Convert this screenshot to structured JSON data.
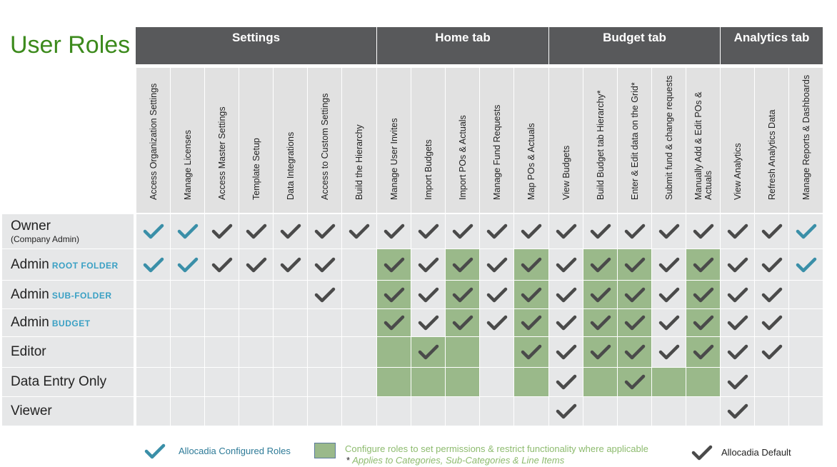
{
  "title": "User Roles",
  "groups": [
    {
      "label": "Settings"
    },
    {
      "label": "Home tab"
    },
    {
      "label": "Budget tab"
    },
    {
      "label": "Analytics tab"
    }
  ],
  "columns": [
    "Access Organization Settings",
    "Manage Licenses",
    "Access Master Settings",
    "Template Setup",
    "Data Integrations",
    "Access to Custom Settings",
    "Build the Hierarchy",
    "Manage User Invites",
    "Import Budgets",
    "Import POs & Actuals",
    "Manage Fund Requests",
    "Map POs & Actuals",
    "View Budgets",
    "Build Budget tab Hierarchy*",
    "Enter & Edit data on the Grid*",
    "Submit fund & change requests",
    "Manually Add & Edit POs & Actuals",
    "View Analytics",
    "Refresh Analytics Data",
    "Manage Reports & Dashboards"
  ],
  "rows": [
    {
      "name": "Owner",
      "tag": "",
      "note": "(Company Admin)",
      "cells": "BBDDDDDDDDDDDDDDDDDB",
      "green": "00000000000000000000"
    },
    {
      "name": "Admin",
      "tag": "ROOT FOLDER",
      "note": "",
      "cells": "BBDDDD0DDDDDDDDDDDDB",
      "green": "00000001010101101000"
    },
    {
      "name": "Admin",
      "tag": "SUB-FOLDER",
      "note": "",
      "cells": "00000D0DDDDDDDDDDDD0",
      "green": "00000001010101101000"
    },
    {
      "name": "Admin",
      "tag": "BUDGET",
      "note": "",
      "cells": "0000000DDDDDDDDDDDD0",
      "green": "00000001010101101000"
    },
    {
      "name": "Editor",
      "tag": "",
      "note": "",
      "cells": "00000000D00DDDDDDDD0",
      "green": "00000001110101101000"
    },
    {
      "name": "Data Entry Only",
      "tag": "",
      "note": "",
      "cells": "000000000000D0D00D00",
      "green": "00000001110101111000"
    },
    {
      "name": "Viewer",
      "tag": "",
      "note": "",
      "cells": "000000000000D0000D00",
      "green": "00000000000000000000"
    }
  ],
  "legend": {
    "configured": "Allocadia Configured Roles",
    "configure_text": "Configure roles to set permissions & restrict functionality where applicable",
    "asterisk_mark": "*",
    "asterisk_text": "Applies to Categories, Sub-Categories & Line Items",
    "default": "Allocadia Default"
  },
  "colors": {
    "title_green": "#3c8a1c",
    "header_dark": "#58595b",
    "header_light": "#e1e1e1",
    "cell_gray": "#e6e7e8",
    "permission_green": "#9ab98a",
    "check_blue": "#3a8fa8",
    "check_dark": "#4a4a4a",
    "tag_blue": "#3aa0c4",
    "legend_green_text": "#8dbb6e"
  },
  "icons": {
    "configured": "check-blue-icon",
    "default": "check-dark-icon"
  }
}
